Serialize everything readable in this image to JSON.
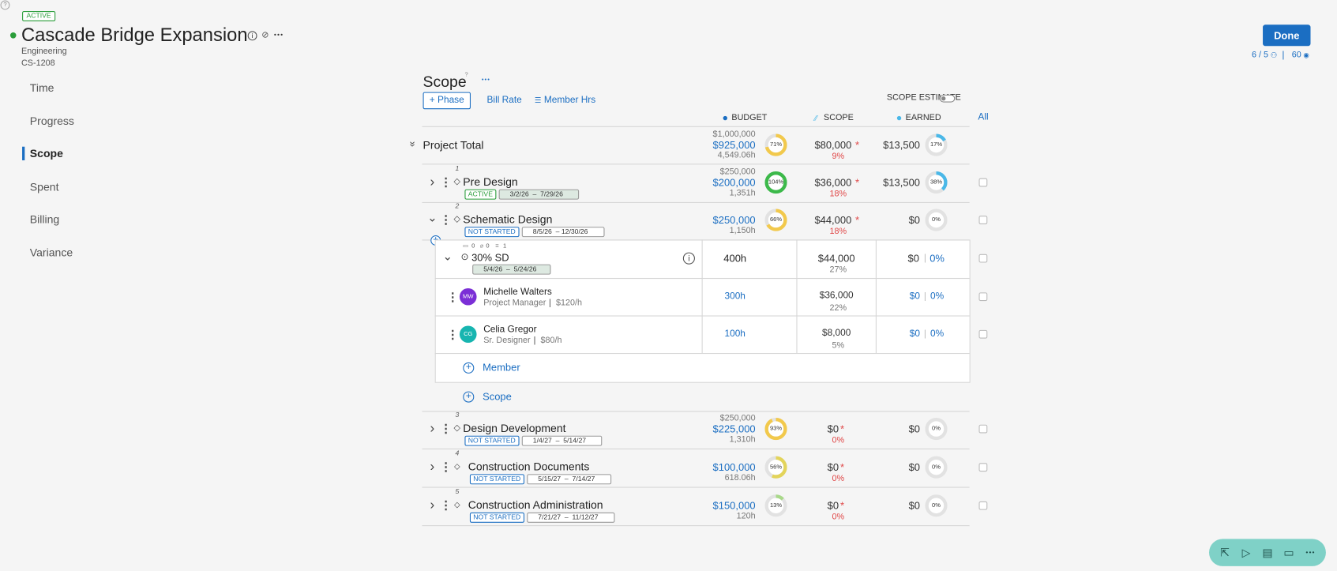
{
  "header": {
    "status": "ACTIVE",
    "title": "Cascade Bridge Expansion",
    "department": "Engineering",
    "code": "CS-1208",
    "done": "Done",
    "members": "6 / 5",
    "views": "60"
  },
  "nav": {
    "items": [
      "Time",
      "Progress",
      "Scope",
      "Spent",
      "Billing",
      "Variance"
    ]
  },
  "scope": {
    "title": "Scope",
    "actions": [
      "+ Phase",
      "Bill Rate",
      "Member Hrs"
    ],
    "estimate_label": "SCOPE ESTIMATE",
    "columns": [
      "BUDGET",
      "SCOPE",
      "EARNED"
    ],
    "all": "All",
    "total": {
      "name": "Project Total",
      "budget_top": "$1,000,000",
      "budget": "$925,000",
      "hours": "4,549.06h",
      "budget_pct": "71%",
      "budget_color": "#f2c94c",
      "scope": "$80,000",
      "scope_flag": "*",
      "scope_pct": "9%",
      "earned": "$13,500",
      "earned_pct": "17%"
    },
    "phases": [
      {
        "number": "1",
        "name": "Pre Design",
        "status": "ACTIVE",
        "dates": "3/2/26  –  7/29/26",
        "budget_top": "$250,000",
        "budget": "$200,000",
        "hours": "1,351h",
        "budget_pct": "104%",
        "budget_color": "#3cb94a",
        "scope": "$36,000",
        "scope_flag": "*",
        "scope_pct": "18%",
        "earned": "$13,500",
        "earned_pct": "38%"
      },
      {
        "number": "2",
        "name": "Schematic Design",
        "status": "NOT STARTED",
        "dates": "8/5/26  – 12/30/26",
        "budget": "$250,000",
        "hours": "1,150h",
        "budget_pct": "66%",
        "budget_color": "#f2c94c",
        "scope": "$44,000",
        "scope_flag": "*",
        "scope_pct": "18%",
        "earned": "$0",
        "earned_pct": "0%"
      },
      {
        "number": "3",
        "name": "Design Development",
        "status": "NOT STARTED",
        "dates": "1/4/27  –  5/14/27",
        "budget_top": "$250,000",
        "budget": "$225,000",
        "hours": "1,310h",
        "budget_pct": "93%",
        "budget_color": "#f2c94c",
        "scope": "$0",
        "scope_flag": "*",
        "scope_pct": "0%",
        "earned": "$0",
        "earned_pct": "0%"
      },
      {
        "number": "4",
        "name": "Construction Documents",
        "status": "NOT STARTED",
        "dates": "5/15/27  –  7/14/27",
        "budget": "$100,000",
        "hours": "618.06h",
        "budget_pct": "56%",
        "budget_color": "#e3d45a",
        "scope": "$0",
        "scope_flag": "*",
        "scope_pct": "0%",
        "earned": "$0",
        "earned_pct": "0%"
      },
      {
        "number": "5",
        "name": "Construction Administration",
        "status": "NOT STARTED",
        "dates": "7/21/27  –  11/12/27",
        "budget": "$150,000",
        "hours": "120h",
        "budget_pct": "13%",
        "budget_color": "#a9d98a",
        "scope": "$0",
        "scope_flag": "*",
        "scope_pct": "0%",
        "earned": "$0",
        "earned_pct": "0%"
      }
    ],
    "task": {
      "name": "30% SD",
      "comments": "0",
      "attachments": "0",
      "checklists": "1",
      "dates": "5/4/26  –  5/24/26",
      "hours": "400h",
      "scope": "$44,000",
      "scope_pct": "27%",
      "earned": "$0",
      "earned_pct": "0%"
    },
    "members": [
      {
        "initials": "MW",
        "color": "#7b2fd6",
        "name": "Michelle Walters",
        "role": "Project Manager",
        "rate": "$120/h",
        "hours": "300h",
        "scope": "$36,000",
        "scope_pct": "22%",
        "earned": "$0",
        "earned_pct": "0%"
      },
      {
        "initials": "CG",
        "color": "#17b5b0",
        "name": "Celia Gregor",
        "role": "Sr. Designer",
        "rate": "$80/h",
        "hours": "100h",
        "scope": "$8,000",
        "scope_pct": "5%",
        "earned": "$0",
        "earned_pct": "0%"
      }
    ],
    "add_member": "Member",
    "add_scope": "Scope"
  }
}
